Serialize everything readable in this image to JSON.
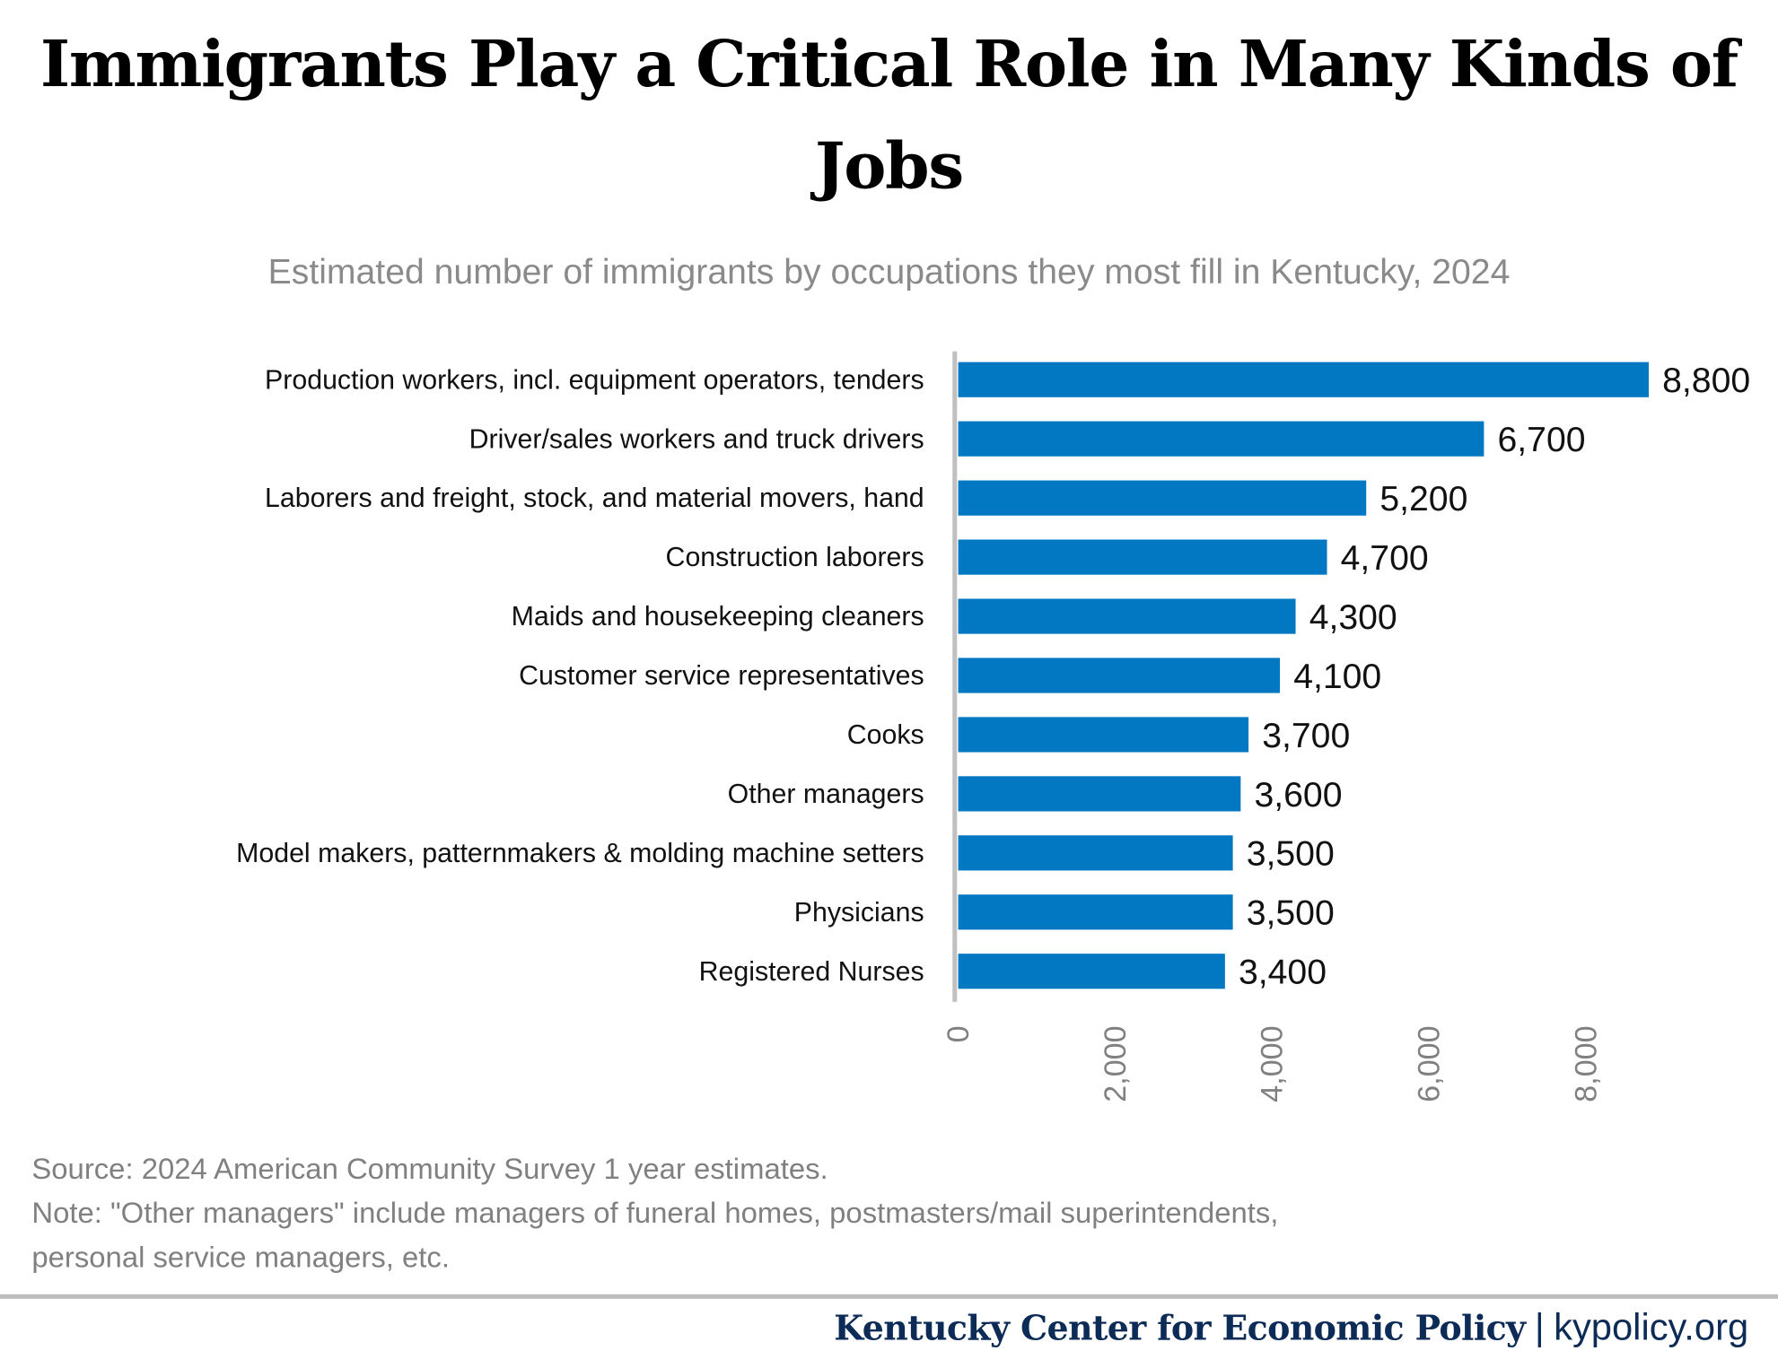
{
  "chart_data": {
    "type": "bar",
    "orientation": "horizontal",
    "title": "Immigrants Play a Critical Role in Many Kinds of Jobs",
    "subtitle": "Estimated number of immigrants by occupations they most fill in Kentucky, 2024",
    "categories": [
      "Production workers, incl. equipment operators, tenders",
      "Driver/sales workers and truck drivers",
      "Laborers and freight, stock, and material movers, hand",
      "Construction laborers",
      "Maids and housekeeping cleaners",
      "Customer service representatives",
      "Cooks",
      "Other managers",
      "Model makers, patternmakers & molding machine setters",
      "Physicians",
      "Registered Nurses"
    ],
    "values": [
      8800,
      6700,
      5200,
      4700,
      4300,
      4100,
      3700,
      3600,
      3500,
      3500,
      3400
    ],
    "value_labels": [
      "8,800",
      "6,700",
      "5,200",
      "4,700",
      "4,300",
      "4,100",
      "3,700",
      "3,600",
      "3,500",
      "3,500",
      "3,400"
    ],
    "xticks": [
      0,
      2000,
      4000,
      6000,
      8000
    ],
    "xtick_labels": [
      "0",
      "2,000",
      "4,000",
      "6,000",
      "8,000"
    ],
    "xlim": [
      0,
      8800
    ],
    "grid": false,
    "bar_color": "#0277c2"
  },
  "notes": {
    "source": "Source: 2024 American Community Survey 1 year estimates.",
    "note_line1": "Note: \"Other managers\" include managers of funeral homes, postmasters/mail superintendents,",
    "note_line2": "personal service managers, etc."
  },
  "footer": {
    "org": "Kentucky Center for Economic Policy",
    "separator": "|",
    "url": "kypolicy.org"
  }
}
